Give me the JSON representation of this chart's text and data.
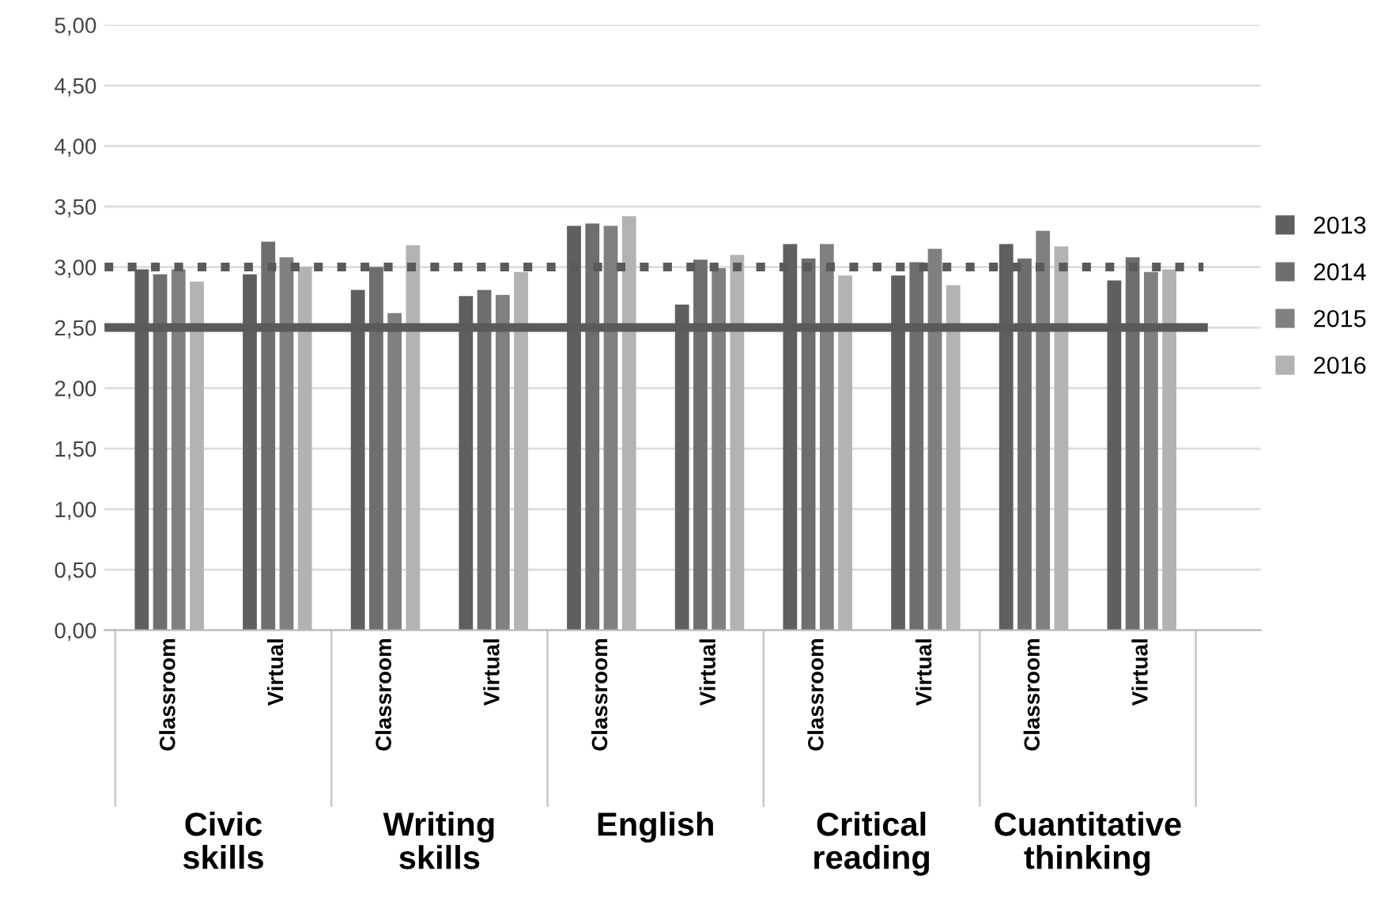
{
  "chart_data": {
    "type": "bar",
    "categories": [
      "Classroom",
      "Virtual",
      "Classroom",
      "Virtual",
      "Classroom",
      "Virtual",
      "Classroom",
      "Virtual",
      "Classroom",
      "Virtual"
    ],
    "series": [
      {
        "name": "2013",
        "color": "#5f5f5f",
        "values": [
          2.98,
          2.94,
          2.81,
          2.76,
          3.34,
          2.69,
          3.19,
          2.93,
          3.19,
          2.89
        ]
      },
      {
        "name": "2014",
        "color": "#6e6e6e",
        "values": [
          2.94,
          3.21,
          3.0,
          2.81,
          3.36,
          3.06,
          3.07,
          3.04,
          3.07,
          3.08
        ]
      },
      {
        "name": "2015",
        "color": "#808080",
        "values": [
          2.98,
          3.08,
          2.62,
          2.77,
          3.34,
          2.99,
          3.19,
          3.15,
          3.3,
          2.96
        ]
      },
      {
        "name": "2016",
        "color": "#b3b3b3",
        "values": [
          2.88,
          3.0,
          3.18,
          2.96,
          3.42,
          3.1,
          2.93,
          2.85,
          3.17,
          2.98
        ]
      }
    ],
    "ylim": [
      0,
      5
    ],
    "yticks": [
      {
        "value": 0,
        "label": "0,00"
      },
      {
        "value": 0.5,
        "label": "0,50"
      },
      {
        "value": 1,
        "label": "1,00"
      },
      {
        "value": 1.5,
        "label": "1,50"
      },
      {
        "value": 2,
        "label": "2,00"
      },
      {
        "value": 2.5,
        "label": "2,50"
      },
      {
        "value": 3,
        "label": "3,00"
      },
      {
        "value": 3.5,
        "label": "3,50"
      },
      {
        "value": 4,
        "label": "4,00"
      },
      {
        "value": 4.5,
        "label": "4,50"
      },
      {
        "value": 5,
        "label": "5,00"
      }
    ],
    "grid": "y",
    "legend": "right",
    "ref_lines": [
      {
        "axis": "y",
        "value": 3.0,
        "color": "#5a5a5a",
        "line_style": "dotted"
      },
      {
        "axis": "y",
        "value": 2.5,
        "color": "#5a5a5a",
        "line_style": "solid"
      }
    ],
    "annotations": [
      "Civic\nskills",
      "Writing\nskills",
      "English",
      "Critical\nreading",
      "Cuantitative\nthinking"
    ]
  }
}
